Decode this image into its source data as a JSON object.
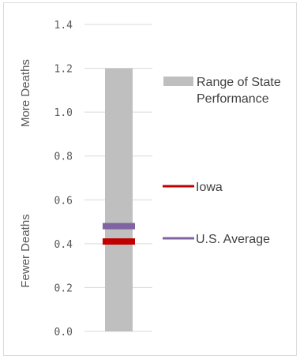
{
  "chart_data": {
    "type": "bar",
    "title": "",
    "ylim": [
      0,
      1.4
    ],
    "yticks": [
      "0.0",
      "0.2",
      "0.4",
      "0.6",
      "0.8",
      "1.0",
      "1.2",
      "1.4"
    ],
    "ylabel_top": "More Deaths",
    "ylabel_bottom": "Fewer Deaths",
    "grid": "horizontal",
    "legend_position": "right",
    "range": {
      "name_line1": "Range of State",
      "name_line2": "Performance",
      "min": 0.0,
      "max": 1.2,
      "color": "#bfbfbf"
    },
    "markers": [
      {
        "name": "Iowa",
        "value": 0.41,
        "color": "#c00000"
      },
      {
        "name": "U.S. Average",
        "value": 0.48,
        "color": "#8064a2"
      }
    ]
  }
}
